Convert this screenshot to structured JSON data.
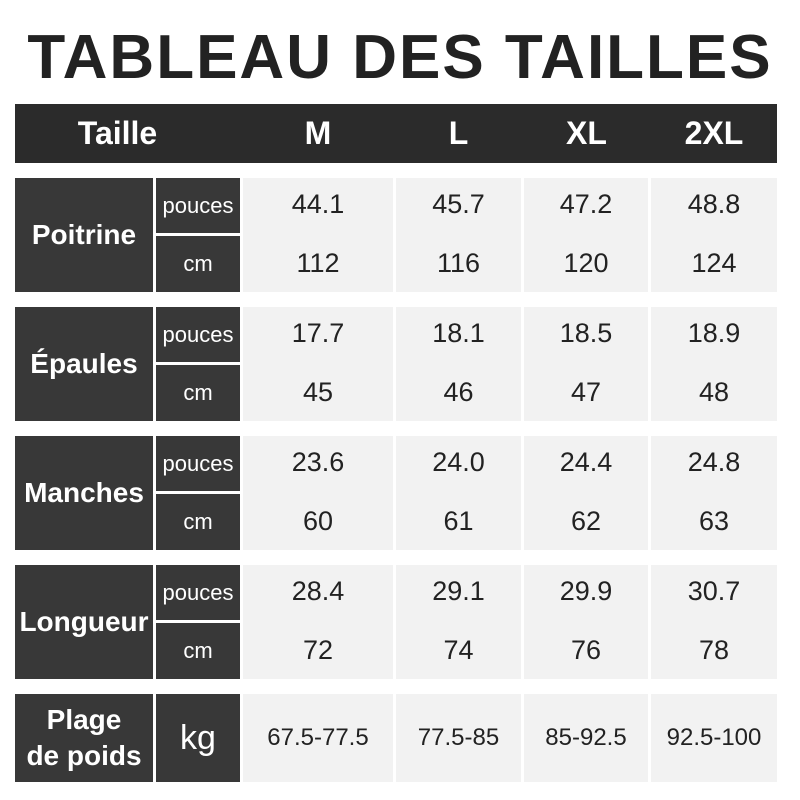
{
  "title": "TABLEAU DES TAILLES",
  "header": {
    "label": "Taille",
    "sizes": [
      "M",
      "L",
      "XL",
      "2XL"
    ]
  },
  "rows": [
    {
      "label": "Poitrine",
      "units": [
        "pouces",
        "cm"
      ],
      "values": [
        [
          "44.1",
          "112"
        ],
        [
          "45.7",
          "116"
        ],
        [
          "47.2",
          "120"
        ],
        [
          "48.8",
          "124"
        ]
      ]
    },
    {
      "label": "Épaules",
      "units": [
        "pouces",
        "cm"
      ],
      "values": [
        [
          "17.7",
          "45"
        ],
        [
          "18.1",
          "46"
        ],
        [
          "18.5",
          "47"
        ],
        [
          "18.9",
          "48"
        ]
      ]
    },
    {
      "label": "Manches",
      "units": [
        "pouces",
        "cm"
      ],
      "values": [
        [
          "23.6",
          "60"
        ],
        [
          "24.0",
          "61"
        ],
        [
          "24.4",
          "62"
        ],
        [
          "24.8",
          "63"
        ]
      ]
    },
    {
      "label": "Longueur",
      "units": [
        "pouces",
        "cm"
      ],
      "values": [
        [
          "28.4",
          "72"
        ],
        [
          "29.1",
          "74"
        ],
        [
          "29.9",
          "76"
        ],
        [
          "30.7",
          "78"
        ]
      ]
    }
  ],
  "weight": {
    "label_line1": "Plage",
    "label_line2": "de poids",
    "unit": "kg",
    "values": [
      "67.5-77.5",
      "77.5-85",
      "85-92.5",
      "92.5-100"
    ]
  },
  "colors": {
    "header": "#2b2b2b",
    "label_cells": "#383838",
    "data_cells": "#f2f2f2"
  }
}
